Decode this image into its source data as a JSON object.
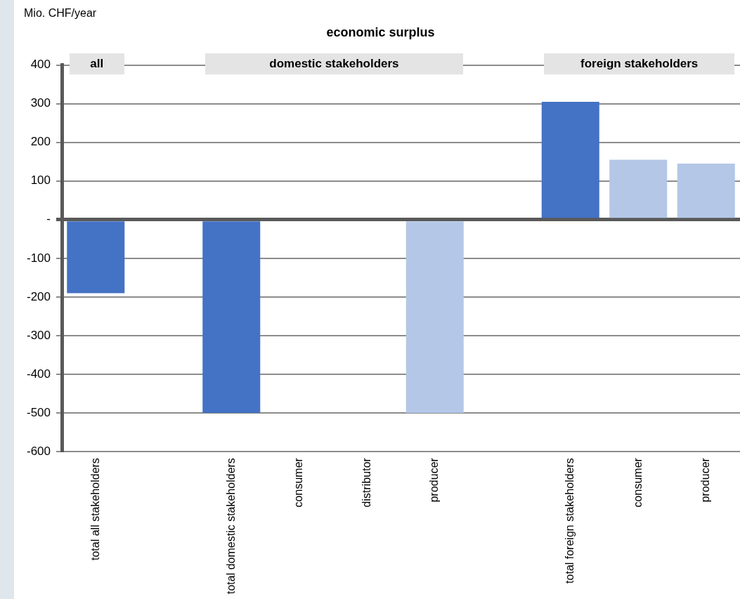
{
  "chart_data": {
    "type": "bar",
    "title": "economic surplus",
    "ylabel": "Mio. CHF/year",
    "categories": [
      "total all stakeholders",
      null,
      "total domestic stakeholders",
      "consumer",
      "distributor",
      "producer",
      null,
      "total foreign stakeholders",
      "consumer",
      "producer"
    ],
    "values": [
      -190,
      null,
      -500,
      0,
      0,
      -500,
      null,
      305,
      155,
      145
    ],
    "colors": [
      "#4472c4",
      "#4472c4",
      "#4472c4",
      "#b4c7e7",
      "#b4c7e7",
      "#b4c7e7",
      "#4472c4",
      "#4472c4",
      "#b4c7e7",
      "#b4c7e7"
    ],
    "ylim": [
      -600,
      400
    ],
    "yticks": [
      -600,
      -500,
      -400,
      -300,
      -200,
      -100,
      {
        "value": 0,
        "label": "-"
      },
      100,
      200,
      300,
      400
    ],
    "grid": "y",
    "legend": false,
    "annotations": [
      "all",
      "domestic stakeholders",
      "foreign stakeholders"
    ]
  }
}
